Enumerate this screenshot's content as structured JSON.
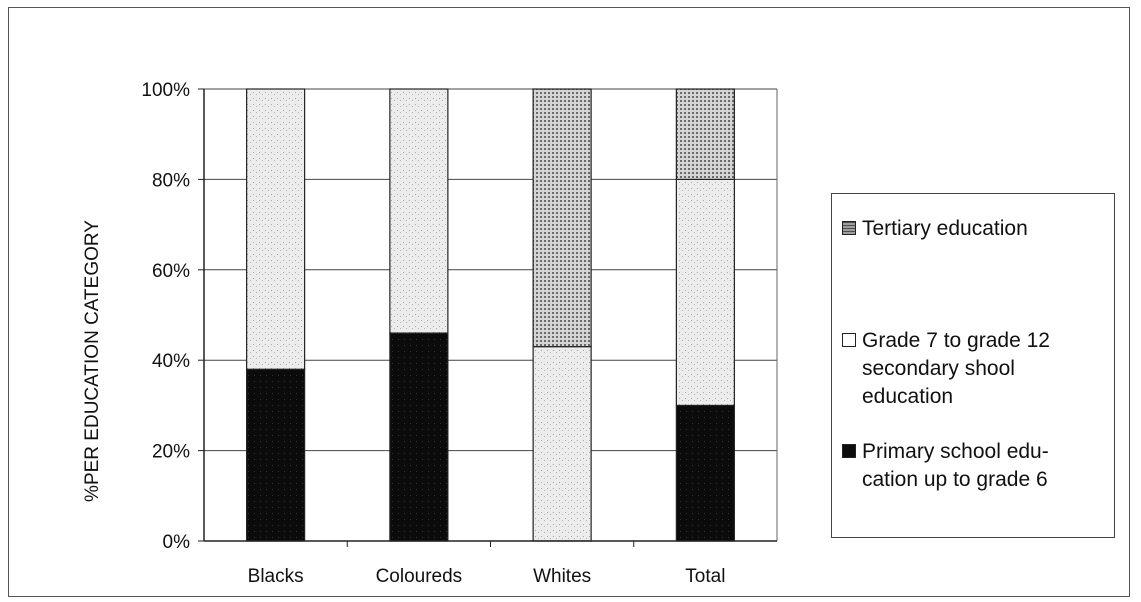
{
  "chart_data": {
    "type": "bar",
    "stacked": true,
    "percent": true,
    "categories": [
      "Blacks",
      "Coloureds",
      "Whites",
      "Total"
    ],
    "series": [
      {
        "name": "Primary school edu-cation up to grade 6",
        "values": [
          38,
          46,
          0,
          30
        ],
        "color": "#0d0d0d"
      },
      {
        "name": "Grade 7 to grade 12 secondary shool education",
        "values": [
          62,
          54,
          43,
          50
        ],
        "color": "#e9e9e9"
      },
      {
        "name": "Tertiary education",
        "values": [
          0,
          0,
          57,
          20
        ],
        "color": "#bdbdbd"
      }
    ],
    "ylabel": "%PER EDUCATION CATEGORY",
    "yticks": [
      "0%",
      "20%",
      "40%",
      "60%",
      "80%",
      "100%"
    ],
    "ylim": [
      0,
      100
    ],
    "grid": true,
    "legend_position": "right"
  },
  "legend": {
    "items": [
      {
        "label": "Tertiary education",
        "color": "#bdbdbd"
      },
      {
        "label": "Grade 7 to grade 12 secondary shool education",
        "color": "#ffffff"
      },
      {
        "label": "Primary school edu-cation up to grade 6",
        "color": "#0d0d0d"
      }
    ]
  }
}
